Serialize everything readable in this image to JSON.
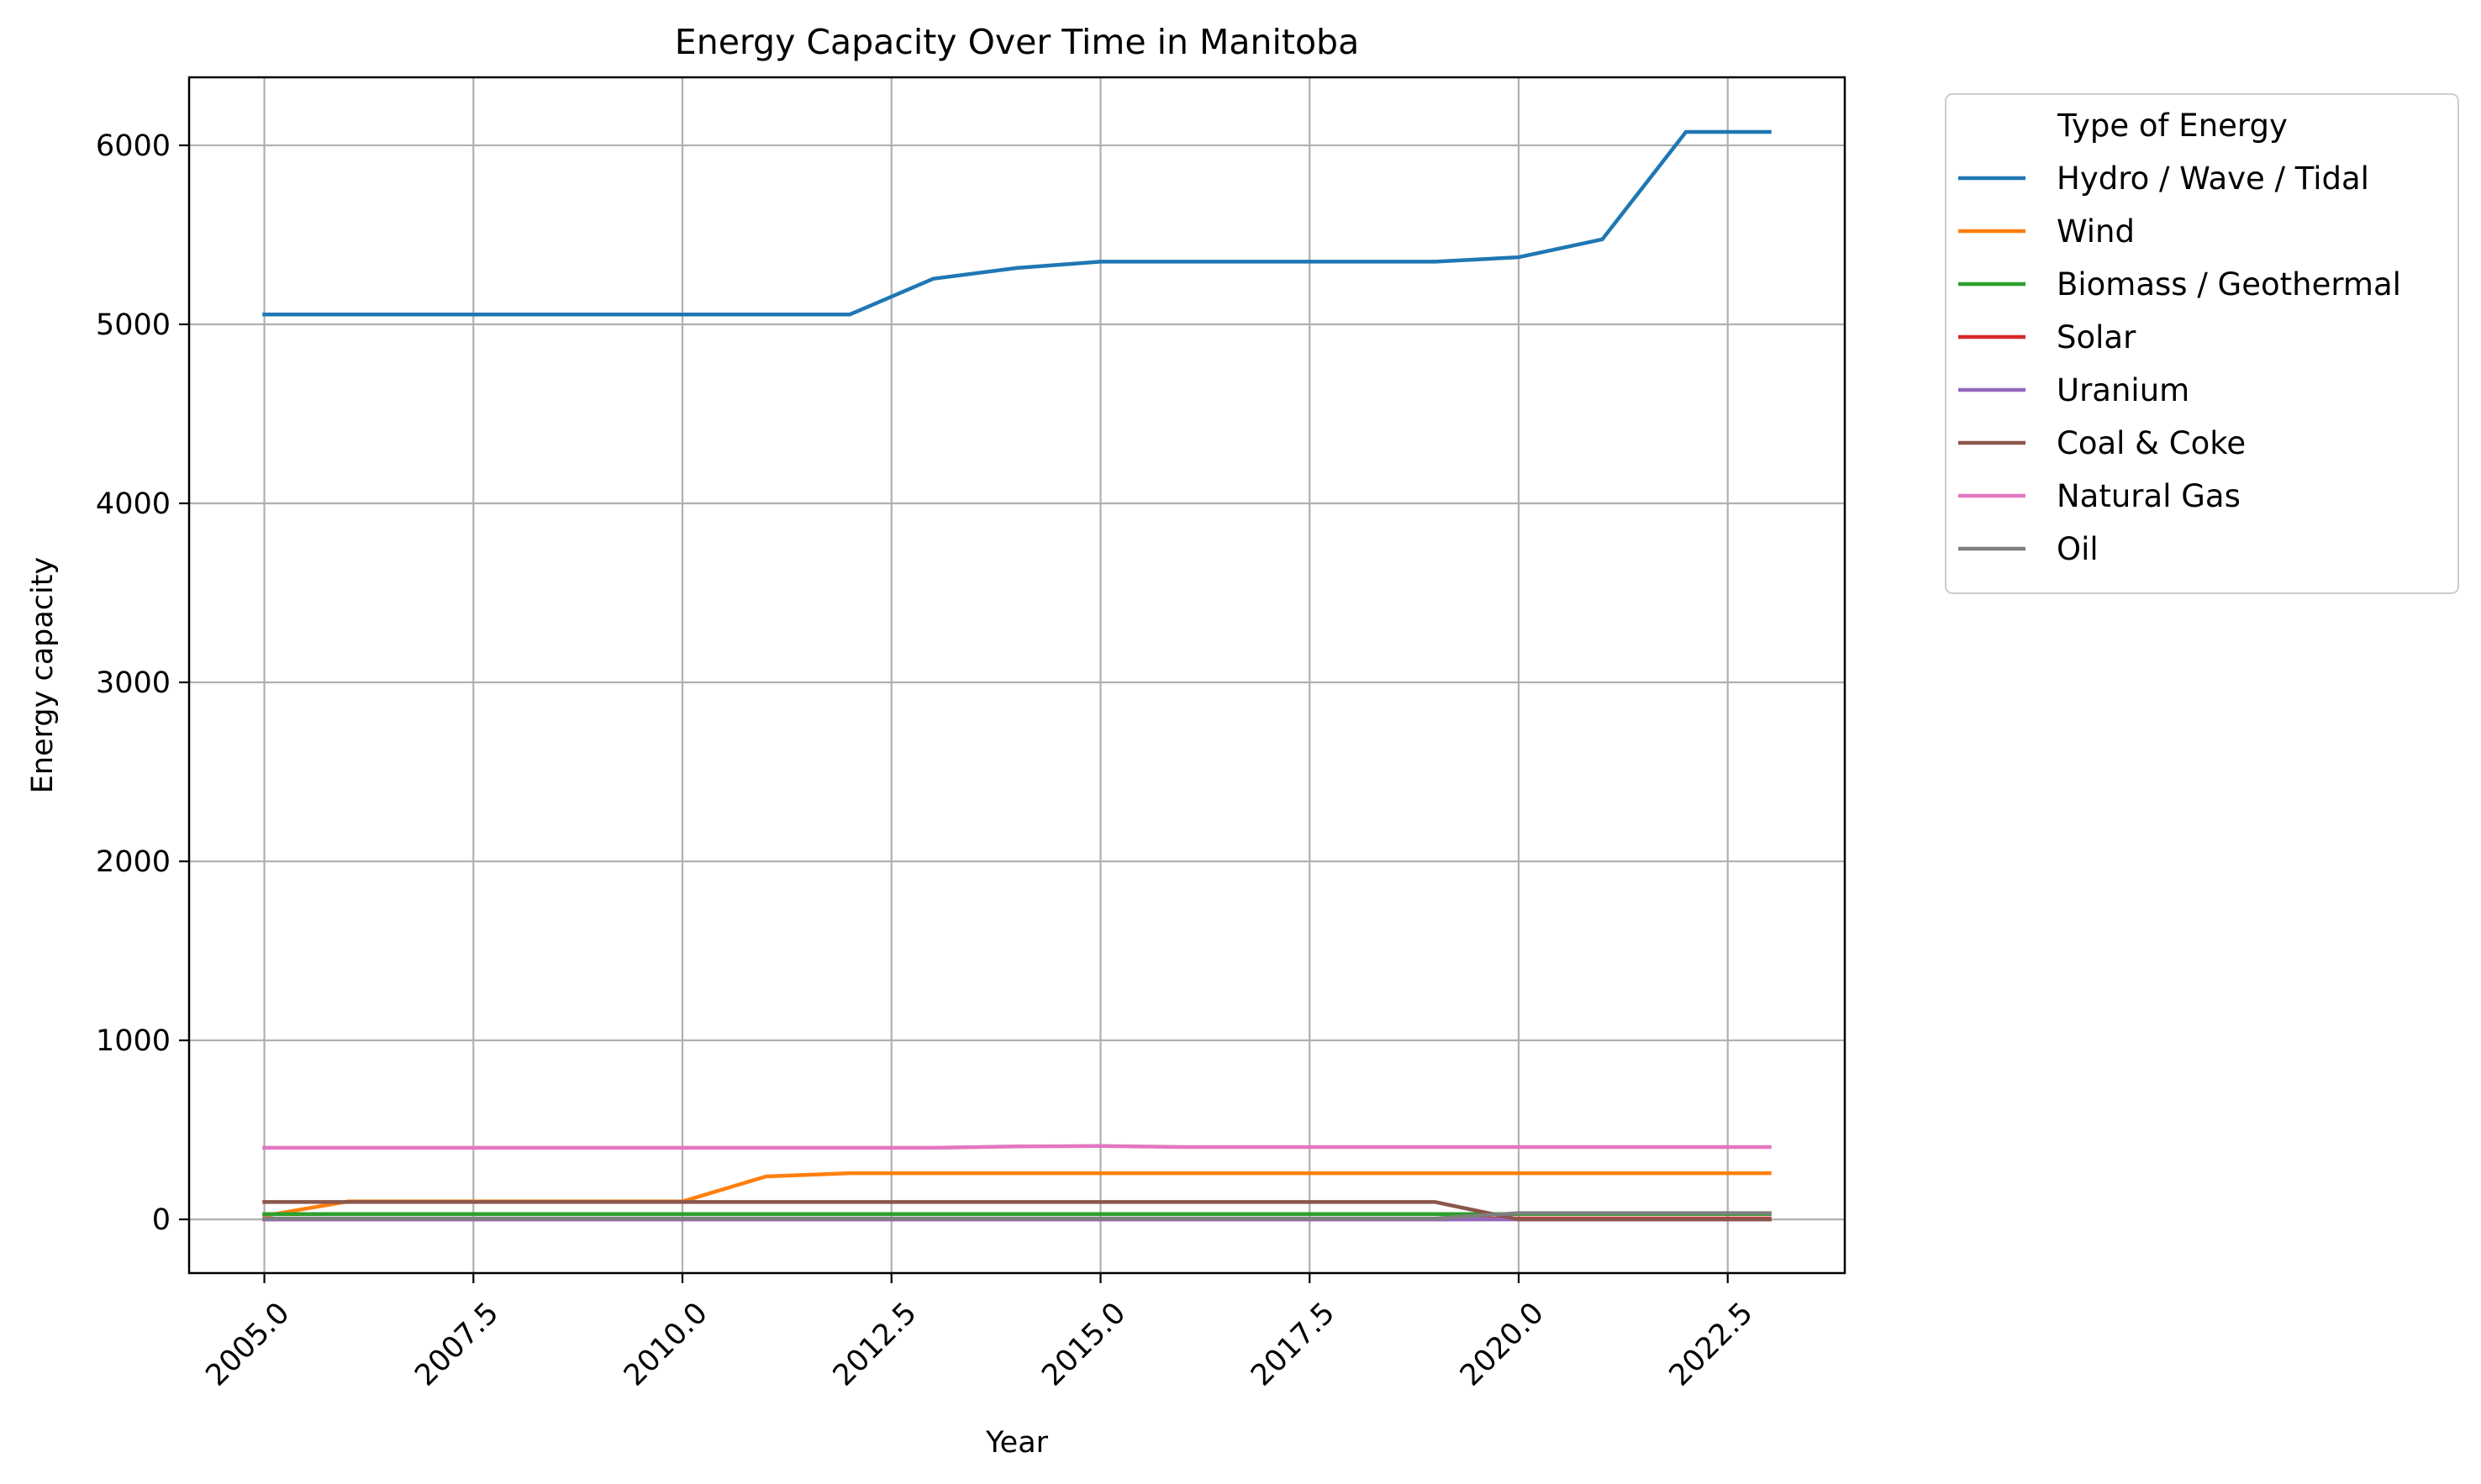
{
  "chart_data": {
    "type": "line",
    "title": "Energy Capacity Over Time in Manitoba",
    "xlabel": "Year",
    "ylabel": "Energy capacity",
    "xlim": [
      2004.1,
      2023.9
    ],
    "ylim": [
      -300,
      6380
    ],
    "xticks": [
      2005.0,
      2007.5,
      2010.0,
      2012.5,
      2015.0,
      2017.5,
      2020.0,
      2022.5
    ],
    "xtick_labels": [
      "2005.0",
      "2007.5",
      "2010.0",
      "2012.5",
      "2015.0",
      "2017.5",
      "2020.0",
      "2022.5"
    ],
    "yticks": [
      0,
      1000,
      2000,
      3000,
      4000,
      5000,
      6000
    ],
    "ytick_labels": [
      "0",
      "1000",
      "2000",
      "3000",
      "4000",
      "5000",
      "6000"
    ],
    "grid": true,
    "legend": {
      "title": "Type of Energy",
      "placement": "outside-upper-right"
    },
    "x": [
      2005,
      2006,
      2007,
      2008,
      2009,
      2010,
      2011,
      2012,
      2013,
      2014,
      2015,
      2016,
      2017,
      2018,
      2019,
      2020,
      2021,
      2022,
      2023
    ],
    "series": [
      {
        "name": "Hydro / Wave / Tidal",
        "color": "#1f77b4",
        "values": [
          5055,
          5055,
          5055,
          5055,
          5055,
          5055,
          5055,
          5055,
          5255,
          5315,
          5350,
          5350,
          5350,
          5350,
          5350,
          5375,
          5475,
          6075,
          6075
        ]
      },
      {
        "name": "Wind",
        "color": "#ff7f0e",
        "values": [
          20,
          100,
          100,
          100,
          100,
          100,
          240,
          258,
          258,
          258,
          258,
          258,
          258,
          258,
          258,
          258,
          258,
          258,
          258
        ]
      },
      {
        "name": "Biomass / Geothermal",
        "color": "#2ca02c",
        "values": [
          30,
          30,
          30,
          30,
          30,
          30,
          30,
          30,
          30,
          30,
          30,
          30,
          30,
          30,
          30,
          30,
          30,
          30,
          30
        ]
      },
      {
        "name": "Solar",
        "color": "#d62728",
        "values": [
          0,
          0,
          0,
          0,
          0,
          0,
          0,
          0,
          0,
          0,
          0,
          0,
          0,
          0,
          0,
          5,
          5,
          5,
          5
        ]
      },
      {
        "name": "Uranium",
        "color": "#9467bd",
        "values": [
          0,
          0,
          0,
          0,
          0,
          0,
          0,
          0,
          0,
          0,
          0,
          0,
          0,
          0,
          0,
          0,
          0,
          0,
          0
        ]
      },
      {
        "name": "Coal & Coke",
        "color": "#8c564b",
        "values": [
          97,
          97,
          97,
          97,
          97,
          97,
          97,
          97,
          97,
          97,
          97,
          97,
          97,
          97,
          97,
          0,
          0,
          0,
          0
        ]
      },
      {
        "name": "Natural Gas",
        "color": "#e377c2",
        "values": [
          400,
          400,
          400,
          400,
          400,
          400,
          400,
          400,
          400,
          408,
          410,
          404,
          404,
          404,
          404,
          404,
          404,
          404,
          404
        ]
      },
      {
        "name": "Oil",
        "color": "#7f7f7f",
        "values": [
          5,
          5,
          5,
          5,
          5,
          5,
          5,
          5,
          5,
          5,
          5,
          5,
          5,
          5,
          5,
          35,
          35,
          35,
          35
        ]
      }
    ]
  }
}
